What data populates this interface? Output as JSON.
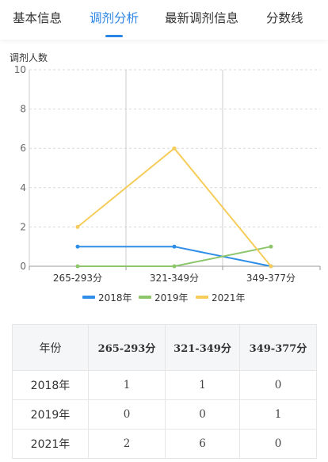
{
  "tabs": [
    {
      "label": "基本信息",
      "active": false
    },
    {
      "label": "调剂分析",
      "active": true
    },
    {
      "label": "最新调剂信息",
      "active": false
    },
    {
      "label": "分数线",
      "active": false
    }
  ],
  "colors": {
    "accent": "#2b85e4",
    "series_2018": "#2f8ee8",
    "series_2019": "#8cc56a",
    "series_2021": "#f6cd5b"
  },
  "chart_data": {
    "type": "line",
    "ylabel": "调剂人数",
    "categories": [
      "265-293分",
      "321-349分",
      "349-377分"
    ],
    "ylim": [
      0,
      10
    ],
    "yticks": [
      "0",
      "2",
      "4",
      "6",
      "8",
      "10"
    ],
    "grid": true,
    "legend_position": "bottom",
    "series": [
      {
        "name": "2018年",
        "values": [
          1,
          1,
          0
        ],
        "color": "#2f8ee8"
      },
      {
        "name": "2019年",
        "values": [
          0,
          0,
          1
        ],
        "color": "#8cc56a"
      },
      {
        "name": "2021年",
        "values": [
          2,
          6,
          0
        ],
        "color": "#f6cd5b"
      }
    ]
  },
  "table": {
    "header": [
      "年份",
      "265-293分",
      "321-349分",
      "349-377分"
    ],
    "rows": [
      [
        "2018年",
        "1",
        "1",
        "0"
      ],
      [
        "2019年",
        "0",
        "0",
        "1"
      ],
      [
        "2021年",
        "2",
        "6",
        "0"
      ]
    ]
  }
}
